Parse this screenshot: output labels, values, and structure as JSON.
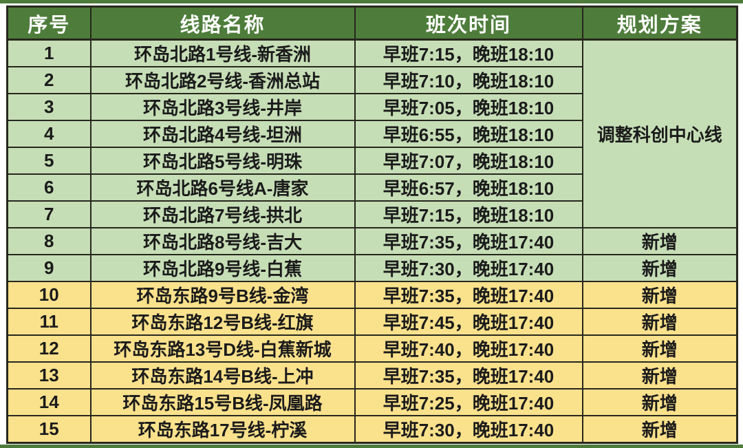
{
  "colors": {
    "header_bg": "#4e7d3b",
    "header_text": "#ffffff",
    "green_row_bg": "#c6deb6",
    "yellow_row_bg": "#fae18c",
    "border": "#27271d",
    "text": "#1b1b1b",
    "band": "#4d7b39",
    "page_bg": "#ffffff"
  },
  "table": {
    "headers": [
      "序号",
      "线路名称",
      "班次时间",
      "规划方案"
    ],
    "merged_plan": {
      "label": "调整科创中心线",
      "row_span": 7
    },
    "rows": [
      {
        "num": "1",
        "route": "环岛北路1号线-新香洲",
        "time": "早班7:15，晚班18:10",
        "plan": "",
        "group": "green"
      },
      {
        "num": "2",
        "route": "环岛北路2号线-香洲总站",
        "time": "早班7:10，晚班18:10",
        "plan": "",
        "group": "green"
      },
      {
        "num": "3",
        "route": "环岛北路3号线-井岸",
        "time": "早班7:05，晚班18:10",
        "plan": "",
        "group": "green"
      },
      {
        "num": "4",
        "route": "环岛北路4号线-坦洲",
        "time": "早班6:55，晚班18:10",
        "plan": "",
        "group": "green"
      },
      {
        "num": "5",
        "route": "环岛北路5号线-明珠",
        "time": "早班7:07，晚班18:10",
        "plan": "",
        "group": "green"
      },
      {
        "num": "6",
        "route": "环岛北路6号线A-唐家",
        "time": "早班6:57，晚班18:10",
        "plan": "",
        "group": "green"
      },
      {
        "num": "7",
        "route": "环岛北路7号线-拱北",
        "time": "早班7:15，晚班18:10",
        "plan": "",
        "group": "green"
      },
      {
        "num": "8",
        "route": "环岛北路8号线-吉大",
        "time": "早班7:35，晚班17:40",
        "plan": "新增",
        "group": "green"
      },
      {
        "num": "9",
        "route": "环岛北路9号线-白蕉",
        "time": "早班7:30，晚班17:40",
        "plan": "新增",
        "group": "green"
      },
      {
        "num": "10",
        "route": "环岛东路9号B线-金湾",
        "time": "早班7:35，晚班17:40",
        "plan": "新增",
        "group": "yellow"
      },
      {
        "num": "11",
        "route": "环岛东路12号B线-红旗",
        "time": "早班7:45，晚班17:40",
        "plan": "新增",
        "group": "yellow"
      },
      {
        "num": "12",
        "route": "环岛东路13号D线-白蕉新城",
        "time": "早班7:40，晚班17:40",
        "plan": "新增",
        "group": "yellow"
      },
      {
        "num": "13",
        "route": "环岛东路14号B线-上冲",
        "time": "早班7:35，晚班17:40",
        "plan": "新增",
        "group": "yellow"
      },
      {
        "num": "14",
        "route": "环岛东路15号B线-凤凰路",
        "time": "早班7:25，晚班17:40",
        "plan": "新增",
        "group": "yellow"
      },
      {
        "num": "15",
        "route": "环岛东路17号线-柠溪",
        "time": "早班7:30，晚班17:40",
        "plan": "新增",
        "group": "yellow"
      }
    ]
  }
}
